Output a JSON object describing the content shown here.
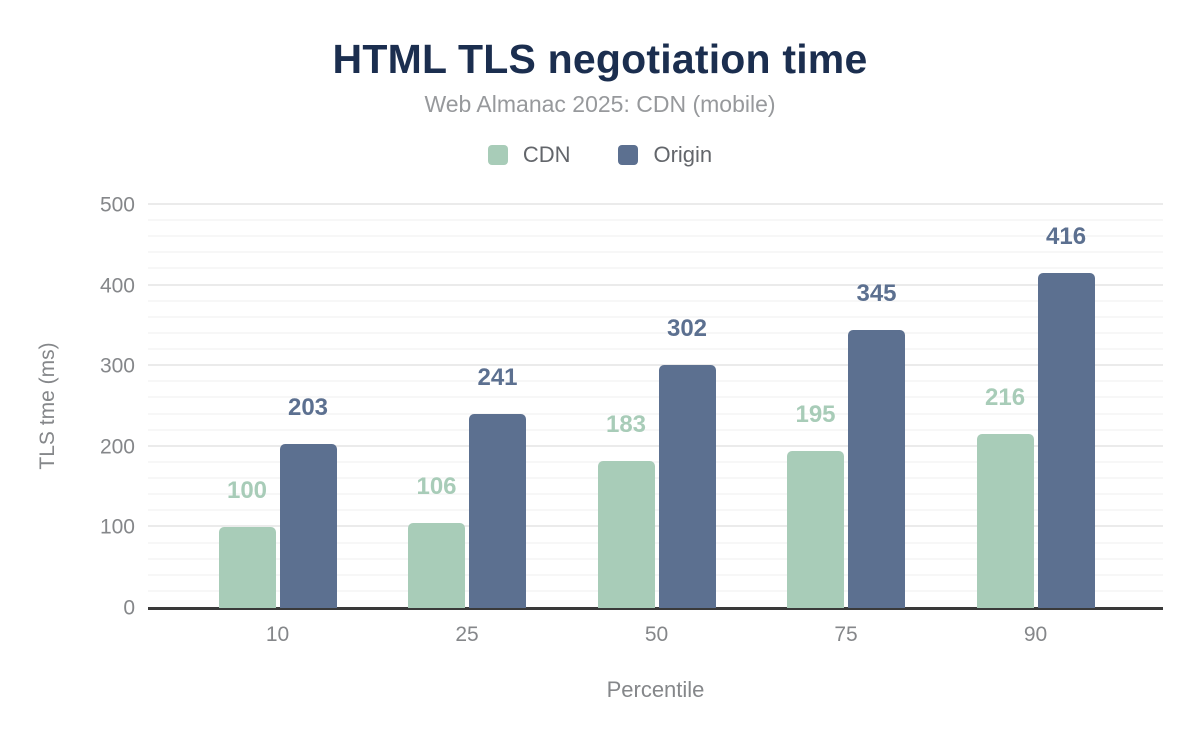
{
  "title": "HTML TLS negotiation time",
  "subtitle": "Web Almanac 2025: CDN (mobile)",
  "colors": {
    "title": "#1b2e4f",
    "subtitle": "#97999c",
    "legend_text": "#63666b",
    "axis_text": "#85878a",
    "grid_major": "#ebebeb",
    "grid_minor": "#f7f7f7",
    "axis_line": "#3a3a3a",
    "cdn": "#a8ccb8",
    "origin": "#5c7090"
  },
  "chart_data": {
    "type": "bar",
    "title": "HTML TLS negotiation time",
    "subtitle": "Web Almanac 2025: CDN (mobile)",
    "categories": [
      "10",
      "25",
      "50",
      "75",
      "90"
    ],
    "series": [
      {
        "name": "CDN",
        "color": "#a8ccb8",
        "values": [
          100,
          106,
          183,
          195,
          216
        ]
      },
      {
        "name": "Origin",
        "color": "#5c7090",
        "values": [
          203,
          241,
          302,
          345,
          416
        ]
      }
    ],
    "xlabel": "Percentile",
    "ylabel": "TLS tme (ms)",
    "ylim": [
      0,
      500
    ],
    "yticks": [
      0,
      100,
      200,
      300,
      400,
      500
    ],
    "minor_grid_step": 20,
    "grid": true,
    "legend_position": "top",
    "value_labels": true
  }
}
